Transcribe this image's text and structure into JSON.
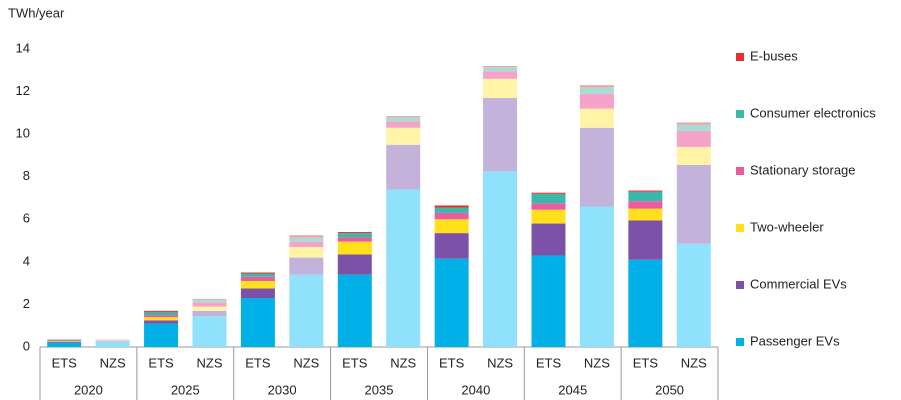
{
  "chart_data": {
    "type": "stacked_bar",
    "y_axis_label": "TWh/year",
    "categories": [
      "ETS",
      "NZS",
      "ETS",
      "NZS",
      "ETS",
      "NZS",
      "ETS",
      "NZS",
      "ETS",
      "NZS",
      "ETS",
      "NZS",
      "ETS",
      "NZS"
    ],
    "groups": [
      "2020",
      "2025",
      "2030",
      "2035",
      "2040",
      "2045",
      "2050"
    ],
    "ylim": [
      0,
      14
    ],
    "yticks": [
      0,
      2,
      4,
      6,
      8,
      10,
      12,
      14
    ],
    "series": [
      {
        "name": "Passenger EVs",
        "color": "#00b0e6",
        "light_color": "#8fe1fc",
        "values": [
          0.2,
          0.25,
          1.1,
          1.45,
          2.3,
          3.4,
          3.4,
          7.4,
          4.15,
          8.25,
          4.3,
          6.6,
          4.1,
          4.85
        ]
      },
      {
        "name": "Commercial EVs",
        "color": "#7b52a8",
        "light_color": "#c3b2da",
        "values": [
          0.05,
          0.03,
          0.15,
          0.25,
          0.45,
          0.8,
          0.95,
          2.1,
          1.2,
          3.45,
          1.5,
          3.7,
          1.85,
          3.7
        ]
      },
      {
        "name": "Two-wheeler",
        "color": "#ffe01a",
        "light_color": "#fff3a6",
        "values": [
          0.03,
          0.02,
          0.15,
          0.2,
          0.35,
          0.5,
          0.6,
          0.8,
          0.65,
          0.9,
          0.65,
          0.9,
          0.55,
          0.85
        ]
      },
      {
        "name": "Stationary storage",
        "color": "#ea5ba0",
        "light_color": "#f5a3cb",
        "values": [
          0.03,
          0.02,
          0.1,
          0.2,
          0.2,
          0.25,
          0.2,
          0.3,
          0.3,
          0.35,
          0.3,
          0.7,
          0.35,
          0.75
        ]
      },
      {
        "name": "Consumer electronics",
        "color": "#3bb8a8",
        "light_color": "#a8ddd6",
        "values": [
          0.03,
          0.02,
          0.15,
          0.1,
          0.15,
          0.2,
          0.2,
          0.2,
          0.25,
          0.2,
          0.45,
          0.3,
          0.45,
          0.3
        ]
      },
      {
        "name": "E-buses",
        "color": "#e63030",
        "light_color": "#f4a0a0",
        "values": [
          0.01,
          0.01,
          0.05,
          0.05,
          0.05,
          0.1,
          0.05,
          0.05,
          0.1,
          0.05,
          0.05,
          0.1,
          0.05,
          0.1
        ]
      }
    ]
  }
}
